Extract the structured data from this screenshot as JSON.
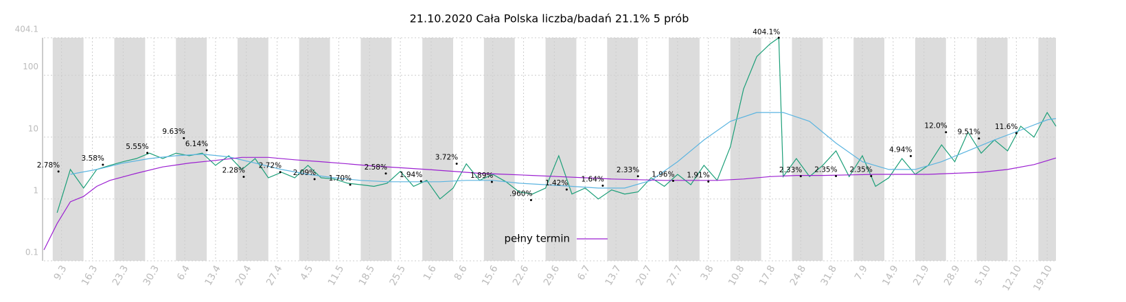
{
  "chart_data": {
    "type": "line",
    "title": "21.10.2020 Cała Polska liczba/badań 21.1% 5 prób",
    "yscale": "log",
    "grid": true,
    "legend_position": "lower center",
    "xlim": [
      0,
      230
    ],
    "xticks": [
      {
        "value": 4,
        "label": "9.3"
      },
      {
        "value": 11,
        "label": "16.3"
      },
      {
        "value": 18,
        "label": "23.3"
      },
      {
        "value": 25,
        "label": "30.3"
      },
      {
        "value": 32,
        "label": "6.4"
      },
      {
        "value": 39,
        "label": "13.4"
      },
      {
        "value": 46,
        "label": "20.4"
      },
      {
        "value": 53,
        "label": "27.4"
      },
      {
        "value": 60,
        "label": "4.5"
      },
      {
        "value": 67,
        "label": "11.5"
      },
      {
        "value": 74,
        "label": "18.5"
      },
      {
        "value": 81,
        "label": "25.5"
      },
      {
        "value": 88,
        "label": "1.6"
      },
      {
        "value": 95,
        "label": "8.6"
      },
      {
        "value": 102,
        "label": "15.6"
      },
      {
        "value": 109,
        "label": "22.6"
      },
      {
        "value": 116,
        "label": "29.6"
      },
      {
        "value": 123,
        "label": "6.7"
      },
      {
        "value": 130,
        "label": "13.7"
      },
      {
        "value": 137,
        "label": "20.7"
      },
      {
        "value": 144,
        "label": "27.7"
      },
      {
        "value": 151,
        "label": "3.8"
      },
      {
        "value": 158,
        "label": "10.8"
      },
      {
        "value": 165,
        "label": "17.8"
      },
      {
        "value": 172,
        "label": "24.8"
      },
      {
        "value": 179,
        "label": "31.8"
      },
      {
        "value": 186,
        "label": "7.9"
      },
      {
        "value": 193,
        "label": "14.9"
      },
      {
        "value": 200,
        "label": "21.9"
      },
      {
        "value": 207,
        "label": "28.9"
      },
      {
        "value": 214,
        "label": "5.10"
      },
      {
        "value": 221,
        "label": "12.10"
      },
      {
        "value": 228,
        "label": "19.10"
      }
    ],
    "ylim": [
      0.1,
      404.1
    ],
    "yticks": [
      0.1,
      1,
      10,
      100,
      404.1
    ],
    "series": [
      {
        "color": "#1a9e77",
        "x": [
          3,
          6,
          9,
          12,
          15,
          18,
          21,
          24,
          27,
          30,
          33,
          36,
          39,
          42,
          45,
          48,
          51,
          54,
          57,
          60,
          63,
          66,
          69,
          72,
          75,
          78,
          81,
          84,
          87,
          90,
          93,
          96,
          99,
          102,
          105,
          108,
          111,
          114,
          117,
          120,
          123,
          126,
          129,
          132,
          135,
          138,
          141,
          144,
          147,
          150,
          153,
          156,
          159,
          162,
          165,
          167,
          168,
          171,
          174,
          177,
          180,
          183,
          186,
          189,
          192,
          195,
          198,
          201,
          204,
          207,
          210,
          213,
          216,
          219,
          222,
          225,
          228,
          230
        ],
        "values": [
          0.6,
          3,
          1.5,
          3,
          3.5,
          4,
          4.5,
          5.5,
          4.5,
          5.5,
          5,
          5.5,
          3.5,
          5,
          3,
          4.5,
          2.2,
          2.7,
          2.2,
          3.5,
          2.2,
          2.1,
          1.8,
          1.7,
          1.6,
          1.8,
          2.8,
          1.6,
          2,
          1,
          1.5,
          3.7,
          2,
          2.5,
          1.9,
          1.3,
          1.2,
          1.5,
          5,
          1.2,
          1.5,
          1,
          1.4,
          1.2,
          1.3,
          2.2,
          1.6,
          2.5,
          1.7,
          3.5,
          2,
          7,
          60,
          200,
          320,
          404.1,
          2.3,
          4.5,
          2.3,
          3.5,
          6,
          2.3,
          5,
          1.6,
          2.2,
          4.5,
          2.5,
          3.5,
          7.5,
          4,
          12,
          5.5,
          9,
          6,
          15,
          10,
          25,
          15
        ]
      },
      {
        "color": "#5ab4e0",
        "x": [
          6,
          12,
          18,
          24,
          30,
          36,
          42,
          48,
          54,
          60,
          66,
          72,
          78,
          84,
          90,
          96,
          102,
          108,
          114,
          120,
          126,
          132,
          138,
          144,
          150,
          156,
          162,
          168,
          174,
          180,
          186,
          192,
          198,
          204,
          210,
          216,
          222,
          228,
          230
        ],
        "values": [
          2.5,
          3,
          3.8,
          4.5,
          5,
          5.3,
          4.8,
          3.8,
          3,
          2.5,
          2.2,
          2,
          1.9,
          1.9,
          1.9,
          2,
          2,
          1.8,
          1.7,
          1.6,
          1.5,
          1.5,
          2,
          4,
          9,
          18,
          25,
          25,
          18,
          8,
          4,
          3,
          3,
          4,
          6,
          9,
          13,
          19,
          20
        ]
      },
      {
        "name": "pełny termin",
        "color": "#9b1fd1",
        "x": [
          0,
          3,
          6,
          9,
          12,
          15,
          21,
          27,
          33,
          39,
          45,
          51,
          57,
          63,
          69,
          75,
          81,
          87,
          93,
          99,
          105,
          111,
          117,
          123,
          129,
          135,
          141,
          147,
          153,
          159,
          165,
          171,
          177,
          183,
          189,
          195,
          201,
          207,
          213,
          219,
          225,
          230
        ],
        "values": [
          0.15,
          0.4,
          0.9,
          1.1,
          1.6,
          2,
          2.6,
          3.3,
          3.8,
          4.2,
          4.7,
          4.7,
          4.3,
          4,
          3.7,
          3.4,
          3.2,
          3,
          2.8,
          2.6,
          2.5,
          2.4,
          2.3,
          2.2,
          2.1,
          2.05,
          2,
          2,
          2,
          2.1,
          2.3,
          2.4,
          2.4,
          2.45,
          2.5,
          2.5,
          2.5,
          2.6,
          2.7,
          3,
          3.6,
          4.6
        ]
      }
    ],
    "annotations": [
      {
        "x": 3.3,
        "y": 2.78,
        "text": "2.78%"
      },
      {
        "x": 13.4,
        "y": 3.58,
        "text": "3.58%"
      },
      {
        "x": 23.5,
        "y": 5.55,
        "text": "5.55%"
      },
      {
        "x": 31.8,
        "y": 9.63,
        "text": "9.63%"
      },
      {
        "x": 37,
        "y": 6.14,
        "text": "6.14%"
      },
      {
        "x": 45.4,
        "y": 2.28,
        "text": "2.28%"
      },
      {
        "x": 53.7,
        "y": 2.72,
        "text": "2.72%"
      },
      {
        "x": 61.5,
        "y": 2.09,
        "text": "2.09%"
      },
      {
        "x": 69.6,
        "y": 1.7,
        "text": "1.70%"
      },
      {
        "x": 77.7,
        "y": 2.58,
        "text": "2.58%"
      },
      {
        "x": 85.7,
        "y": 1.94,
        "text": "1.94%"
      },
      {
        "x": 93.8,
        "y": 3.72,
        "text": "3.72%"
      },
      {
        "x": 101.8,
        "y": 1.89,
        "text": "1.89%"
      },
      {
        "x": 110.7,
        "y": 0.96,
        "text": ".960%"
      },
      {
        "x": 118.8,
        "y": 1.42,
        "text": "1.42%"
      },
      {
        "x": 127,
        "y": 1.64,
        "text": "1.64%"
      },
      {
        "x": 135,
        "y": 2.33,
        "text": "2.33%"
      },
      {
        "x": 143,
        "y": 1.96,
        "text": "1.96%"
      },
      {
        "x": 151,
        "y": 1.91,
        "text": "1.91%"
      },
      {
        "x": 167,
        "y": 404.1,
        "text": "404.1%"
      },
      {
        "x": 172,
        "y": 2.33,
        "text": "2.33%"
      },
      {
        "x": 180,
        "y": 2.35,
        "text": "2.35%"
      },
      {
        "x": 188,
        "y": 2.35,
        "text": "2.35%"
      },
      {
        "x": 197,
        "y": 4.94,
        "text": "4.94%"
      },
      {
        "x": 205,
        "y": 12.0,
        "text": "12.0%"
      },
      {
        "x": 212.5,
        "y": 9.51,
        "text": "9.51%"
      },
      {
        "x": 221,
        "y": 11.6,
        "text": "11.6%"
      }
    ]
  }
}
